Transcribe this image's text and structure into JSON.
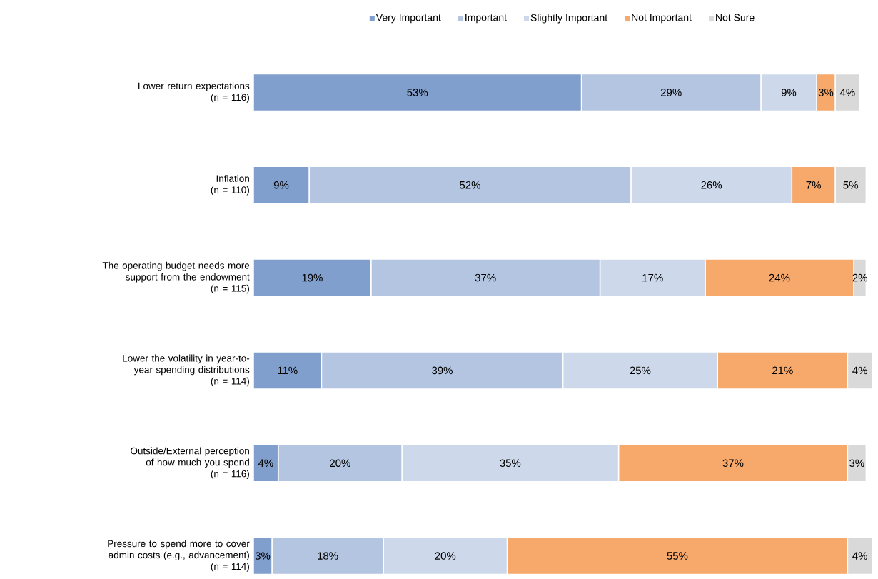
{
  "chart_data": {
    "type": "bar",
    "orientation": "horizontal",
    "stacked": true,
    "legend": "top",
    "categories": [
      "Lower return expectations\n(n = 116)",
      "Inflation\n(n = 110)",
      "The operating budget needs more\nsupport from the endowment\n(n = 115)",
      "Lower the volatility in year-to-\nyear spending distributions\n(n = 114)",
      "Outside/External perception\nof how much you spend\n(n = 116)",
      "Pressure to spend more to cover\nadmin costs (e.g., advancement)\n(n = 114)"
    ],
    "series": [
      {
        "name": "Very Important",
        "color": "#819fcc",
        "values": [
          53,
          9,
          19,
          11,
          4,
          3
        ],
        "value_labels": [
          "53%",
          "9%",
          "19%",
          "11%",
          "4%",
          "3%"
        ]
      },
      {
        "name": "Important",
        "color": "#b3c5e0",
        "values": [
          29,
          52,
          37,
          39,
          20,
          18
        ],
        "value_labels": [
          "29%",
          "52%",
          "37%",
          "39%",
          "20%",
          "18%"
        ]
      },
      {
        "name": "Slightly Important",
        "color": "#cdd9ea",
        "values": [
          9,
          26,
          17,
          25,
          35,
          20
        ],
        "value_labels": [
          "9%",
          "26%",
          "17%",
          "25%",
          "35%",
          "20%"
        ]
      },
      {
        "name": "Not Important",
        "color": "#f6a96a",
        "values": [
          3,
          7,
          24,
          21,
          37,
          55
        ],
        "value_labels": [
          "3%",
          "7%",
          "24%",
          "21%",
          "37%",
          "55%"
        ]
      },
      {
        "name": "Not Sure",
        "color": "#d9d9d9",
        "values": [
          4,
          5,
          2,
          4,
          3,
          4
        ],
        "value_labels": [
          "4%",
          "5%",
          "2%",
          "4%",
          "3%",
          "4%"
        ]
      }
    ]
  }
}
